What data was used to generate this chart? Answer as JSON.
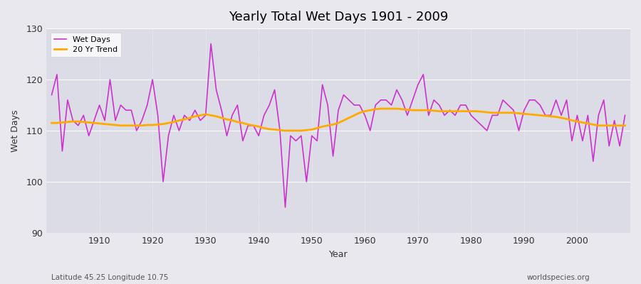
{
  "title": "Yearly Total Wet Days 1901 - 2009",
  "xlabel": "Year",
  "ylabel": "Wet Days",
  "subtitle": "Latitude 45.25 Longitude 10.75",
  "watermark": "worldspecies.org",
  "ylim": [
    90,
    130
  ],
  "yticks": [
    90,
    100,
    110,
    120,
    130
  ],
  "line_color": "#cc33cc",
  "trend_color": "#ffaa00",
  "figure_bg_color": "#e8e8ee",
  "plot_bg_color": "#dcdce6",
  "years": [
    1901,
    1902,
    1903,
    1904,
    1905,
    1906,
    1907,
    1908,
    1909,
    1910,
    1911,
    1912,
    1913,
    1914,
    1915,
    1916,
    1917,
    1918,
    1919,
    1920,
    1921,
    1922,
    1923,
    1924,
    1925,
    1926,
    1927,
    1928,
    1929,
    1930,
    1931,
    1932,
    1933,
    1934,
    1935,
    1936,
    1937,
    1938,
    1939,
    1940,
    1941,
    1942,
    1943,
    1944,
    1945,
    1946,
    1947,
    1948,
    1949,
    1950,
    1951,
    1952,
    1953,
    1954,
    1955,
    1956,
    1957,
    1958,
    1959,
    1960,
    1961,
    1962,
    1963,
    1964,
    1965,
    1966,
    1967,
    1968,
    1969,
    1970,
    1971,
    1972,
    1973,
    1974,
    1975,
    1976,
    1977,
    1978,
    1979,
    1980,
    1981,
    1982,
    1983,
    1984,
    1985,
    1986,
    1987,
    1988,
    1989,
    1990,
    1991,
    1992,
    1993,
    1994,
    1995,
    1996,
    1997,
    1998,
    1999,
    2000,
    2001,
    2002,
    2003,
    2004,
    2005,
    2006,
    2007,
    2008,
    2009
  ],
  "wet_days": [
    117,
    121,
    106,
    116,
    112,
    111,
    113,
    109,
    112,
    115,
    112,
    120,
    112,
    115,
    114,
    114,
    110,
    112,
    115,
    120,
    113,
    100,
    109,
    113,
    110,
    113,
    112,
    114,
    112,
    113,
    127,
    118,
    114,
    109,
    113,
    115,
    108,
    111,
    111,
    109,
    113,
    115,
    118,
    110,
    95,
    109,
    108,
    109,
    100,
    109,
    108,
    119,
    115,
    105,
    114,
    117,
    116,
    115,
    115,
    113,
    110,
    115,
    116,
    116,
    115,
    118,
    116,
    113,
    116,
    119,
    121,
    113,
    116,
    115,
    113,
    114,
    113,
    115,
    115,
    113,
    112,
    111,
    110,
    113,
    113,
    116,
    115,
    114,
    110,
    114,
    116,
    116,
    115,
    113,
    113,
    116,
    113,
    116,
    108,
    113,
    108,
    113,
    104,
    113,
    116,
    107,
    112,
    107,
    113
  ],
  "trend_values": [
    111.5,
    111.5,
    111.6,
    111.7,
    111.8,
    111.8,
    111.7,
    111.6,
    111.5,
    111.4,
    111.3,
    111.2,
    111.1,
    111.0,
    111.0,
    111.0,
    111.0,
    111.0,
    111.1,
    111.1,
    111.2,
    111.3,
    111.5,
    111.7,
    112.0,
    112.2,
    112.5,
    112.8,
    113.0,
    113.2,
    113.0,
    112.8,
    112.5,
    112.2,
    112.0,
    111.7,
    111.5,
    111.2,
    111.0,
    110.8,
    110.5,
    110.3,
    110.2,
    110.1,
    110.0,
    110.0,
    110.0,
    110.0,
    110.1,
    110.2,
    110.5,
    110.8,
    111.0,
    111.2,
    111.5,
    112.0,
    112.5,
    113.0,
    113.5,
    113.8,
    114.0,
    114.2,
    114.3,
    114.3,
    114.3,
    114.3,
    114.2,
    114.1,
    114.0,
    114.0,
    114.0,
    114.0,
    113.9,
    113.8,
    113.8,
    113.8,
    113.8,
    113.8,
    113.8,
    113.8,
    113.8,
    113.7,
    113.6,
    113.5,
    113.5,
    113.5,
    113.5,
    113.5,
    113.4,
    113.3,
    113.2,
    113.1,
    113.0,
    112.9,
    112.8,
    112.7,
    112.5,
    112.3,
    112.0,
    111.8,
    111.6,
    111.4,
    111.2,
    111.0,
    111.0,
    111.0,
    111.0,
    111.0,
    111.0
  ]
}
